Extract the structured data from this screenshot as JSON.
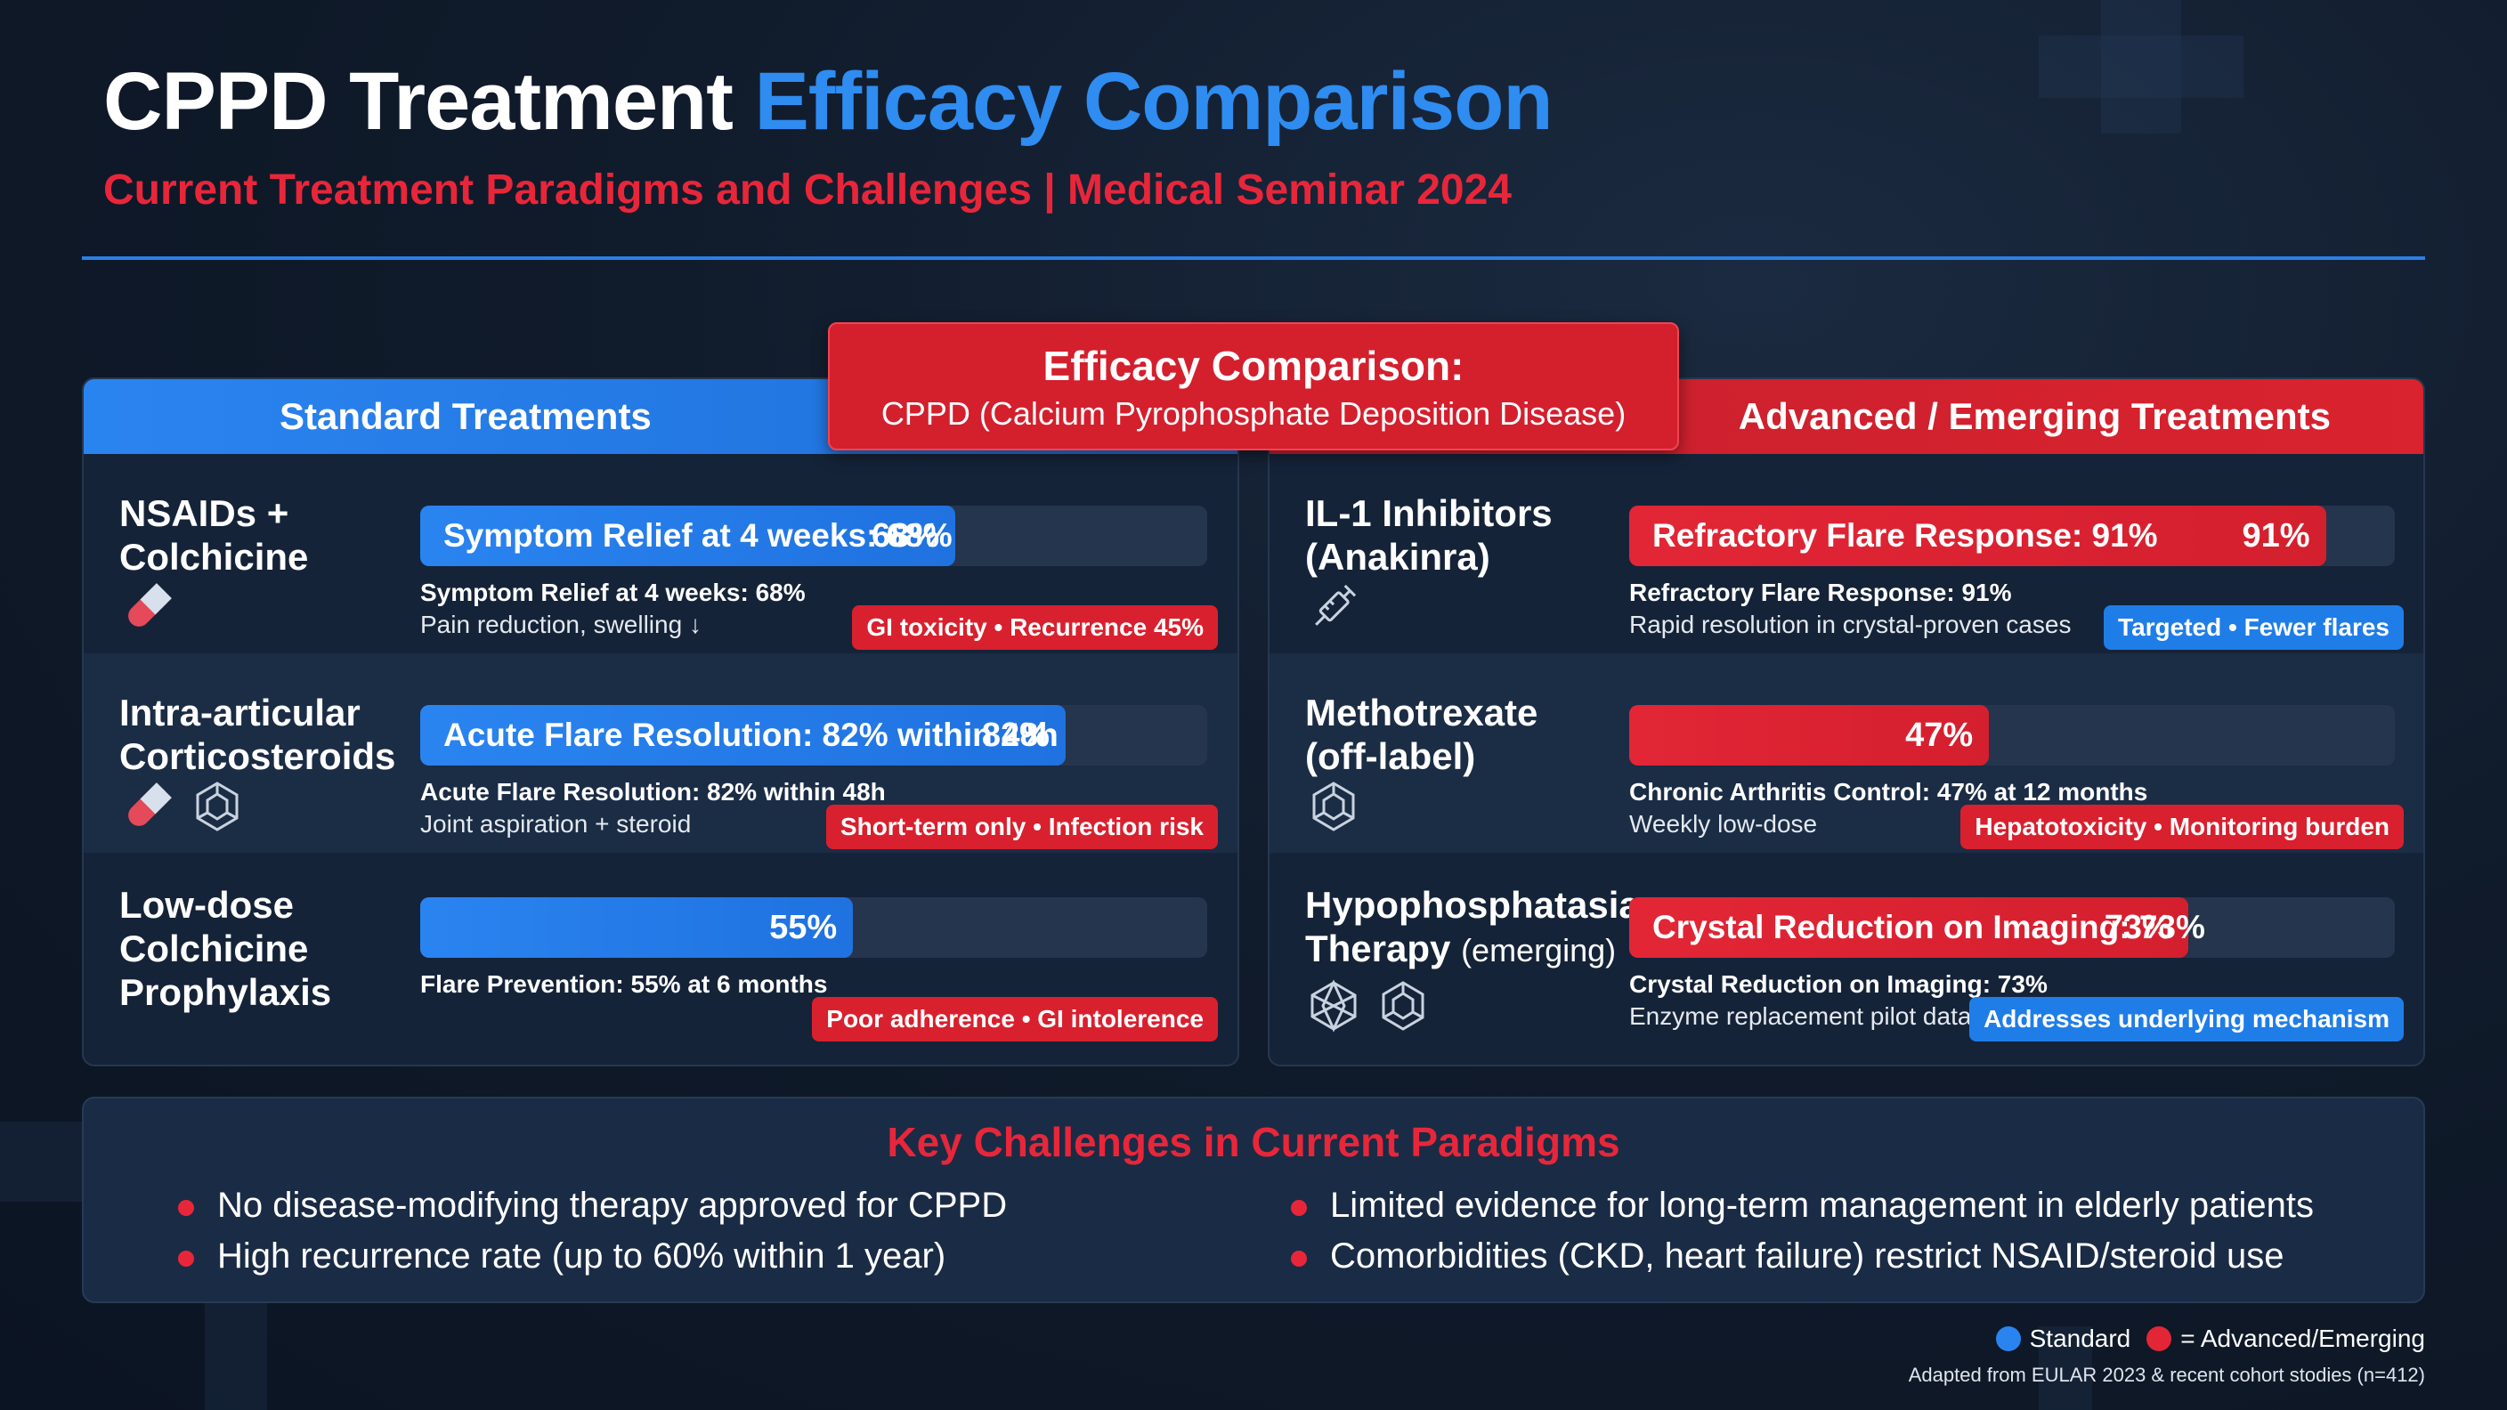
{
  "header": {
    "title_main": "CPPD Treatment",
    "title_accent": "Efficacy Comparison",
    "subtitle": "Current Treatment Paradigms and Challenges | Medical Seminar 2024"
  },
  "center_banner": {
    "title": "Efficacy Comparison:",
    "subtitle": "CPPD (Calcium Pyrophosphate Deposition Disease)"
  },
  "panels": {
    "standard": {
      "header": "Standard Treatments",
      "rows": [
        {
          "name_line1": "NSAIDs +",
          "name_line2": "Colchicine",
          "bar_text": "Symptom Relief at 4 weeks: 68%",
          "bar_value": "68%",
          "detail1": "Symptom Relief at 4 weeks: 68%",
          "detail2": "Pain reduction, swelling ↓",
          "tag": "GI toxicity • Recurrence 45%",
          "icons": [
            "pill-icon"
          ]
        },
        {
          "name_line1": "Intra-articular",
          "name_line2": "Corticosteroids",
          "bar_text": "Acute Flare Resolution: 82% within 48h",
          "bar_value": "82%",
          "detail1": "Acute Flare Resolution: 82% within 48h",
          "detail2": "Joint aspiration + steroid",
          "tag": "Short-term only • Infection risk",
          "icons": [
            "pill-icon",
            "molecule-icon"
          ]
        },
        {
          "name_line1": "Low-dose",
          "name_line2": "Colchicine",
          "name_line3": "Prophylaxis",
          "bar_text": "",
          "bar_value": "55%",
          "detail1": "Flare Prevention: 55% at 6 months",
          "detail2": "",
          "tag": "Poor adherence • GI intolerence",
          "icons": []
        }
      ]
    },
    "advanced": {
      "header": "Advanced / Emerging Treatments",
      "rows": [
        {
          "name_line1": "IL-1 Inhibitors",
          "name_line2": "(Anakinra)",
          "bar_text": "Refractory Flare Response: 91%",
          "bar_value": "91%",
          "detail1": "Refractory Flare Response: 91%",
          "detail2": "Rapid resolution in crystal-proven cases",
          "tag": "Targeted • Fewer flares",
          "icons": [
            "syringe-icon"
          ]
        },
        {
          "name_line1": "Methotrexate",
          "name_line2": "(off-label)",
          "bar_text": "",
          "bar_value": "47%",
          "detail1": "Chronic Arthritis Control: 47% at 12 months",
          "detail2": "Weekly low-dose",
          "tag": "Hepatotoxicity • Monitoring burden",
          "icons": [
            "molecule-icon"
          ]
        },
        {
          "name_line1": "Hypophosphatasia",
          "name_line2": "Therapy",
          "name_line2_small": "(emerging)",
          "bar_text": "Crystal Reduction on Imaging: 73%",
          "bar_value": "73%",
          "detail1": "Crystal Reduction on Imaging: 73%",
          "detail2": "Enzyme replacement pilot data",
          "tag": "Addresses underlying mechanism",
          "icons": [
            "crystal-icon",
            "molecule-icon"
          ]
        }
      ]
    }
  },
  "chart_data": {
    "type": "bar",
    "title": "Efficacy Comparison:",
    "subtitle": "CPPD (Calcium Pyrophosphate Deposition Disease)",
    "categories": [
      "NSAIDs + Colchicine",
      "Intra-articular Corticosteroids",
      "Low-dose Colchicine Prophylaxis",
      "IL-1 Inhibitors (Anakinra)",
      "Methotrexate (off-label)",
      "Hypophosphatasia Therapy (emerging)"
    ],
    "series": [
      {
        "name": "Standard",
        "values": [
          68,
          82,
          55,
          null,
          null,
          null
        ]
      },
      {
        "name": "Advanced/Emerging",
        "values": [
          null,
          null,
          null,
          91,
          47,
          73
        ]
      }
    ],
    "ylim": [
      0,
      100
    ],
    "orientation": "horizontal",
    "colors": {
      "standard": "#2a84f0",
      "advanced": "#e22636"
    }
  },
  "challenges": {
    "title": "Key Challenges in Current Paradigms",
    "left": [
      "No disease-modifying therapy approved for CPPD",
      "High recurrence rate (up to 60% within 1 year)"
    ],
    "right": [
      "Limited evidence for long-term management in elderly patients",
      "Comorbidities (CKD, heart failure) restrict NSAID/steroid use"
    ]
  },
  "legend": {
    "standard": "Standard",
    "advanced": "= Advanced/Emerging"
  },
  "source": "Adapted from EULAR 2023 & recent cohort stodies (n=412)",
  "colors": {
    "blue": "#2a84f0",
    "red": "#e22636",
    "background": "#101b2b",
    "panel": "#152338"
  }
}
